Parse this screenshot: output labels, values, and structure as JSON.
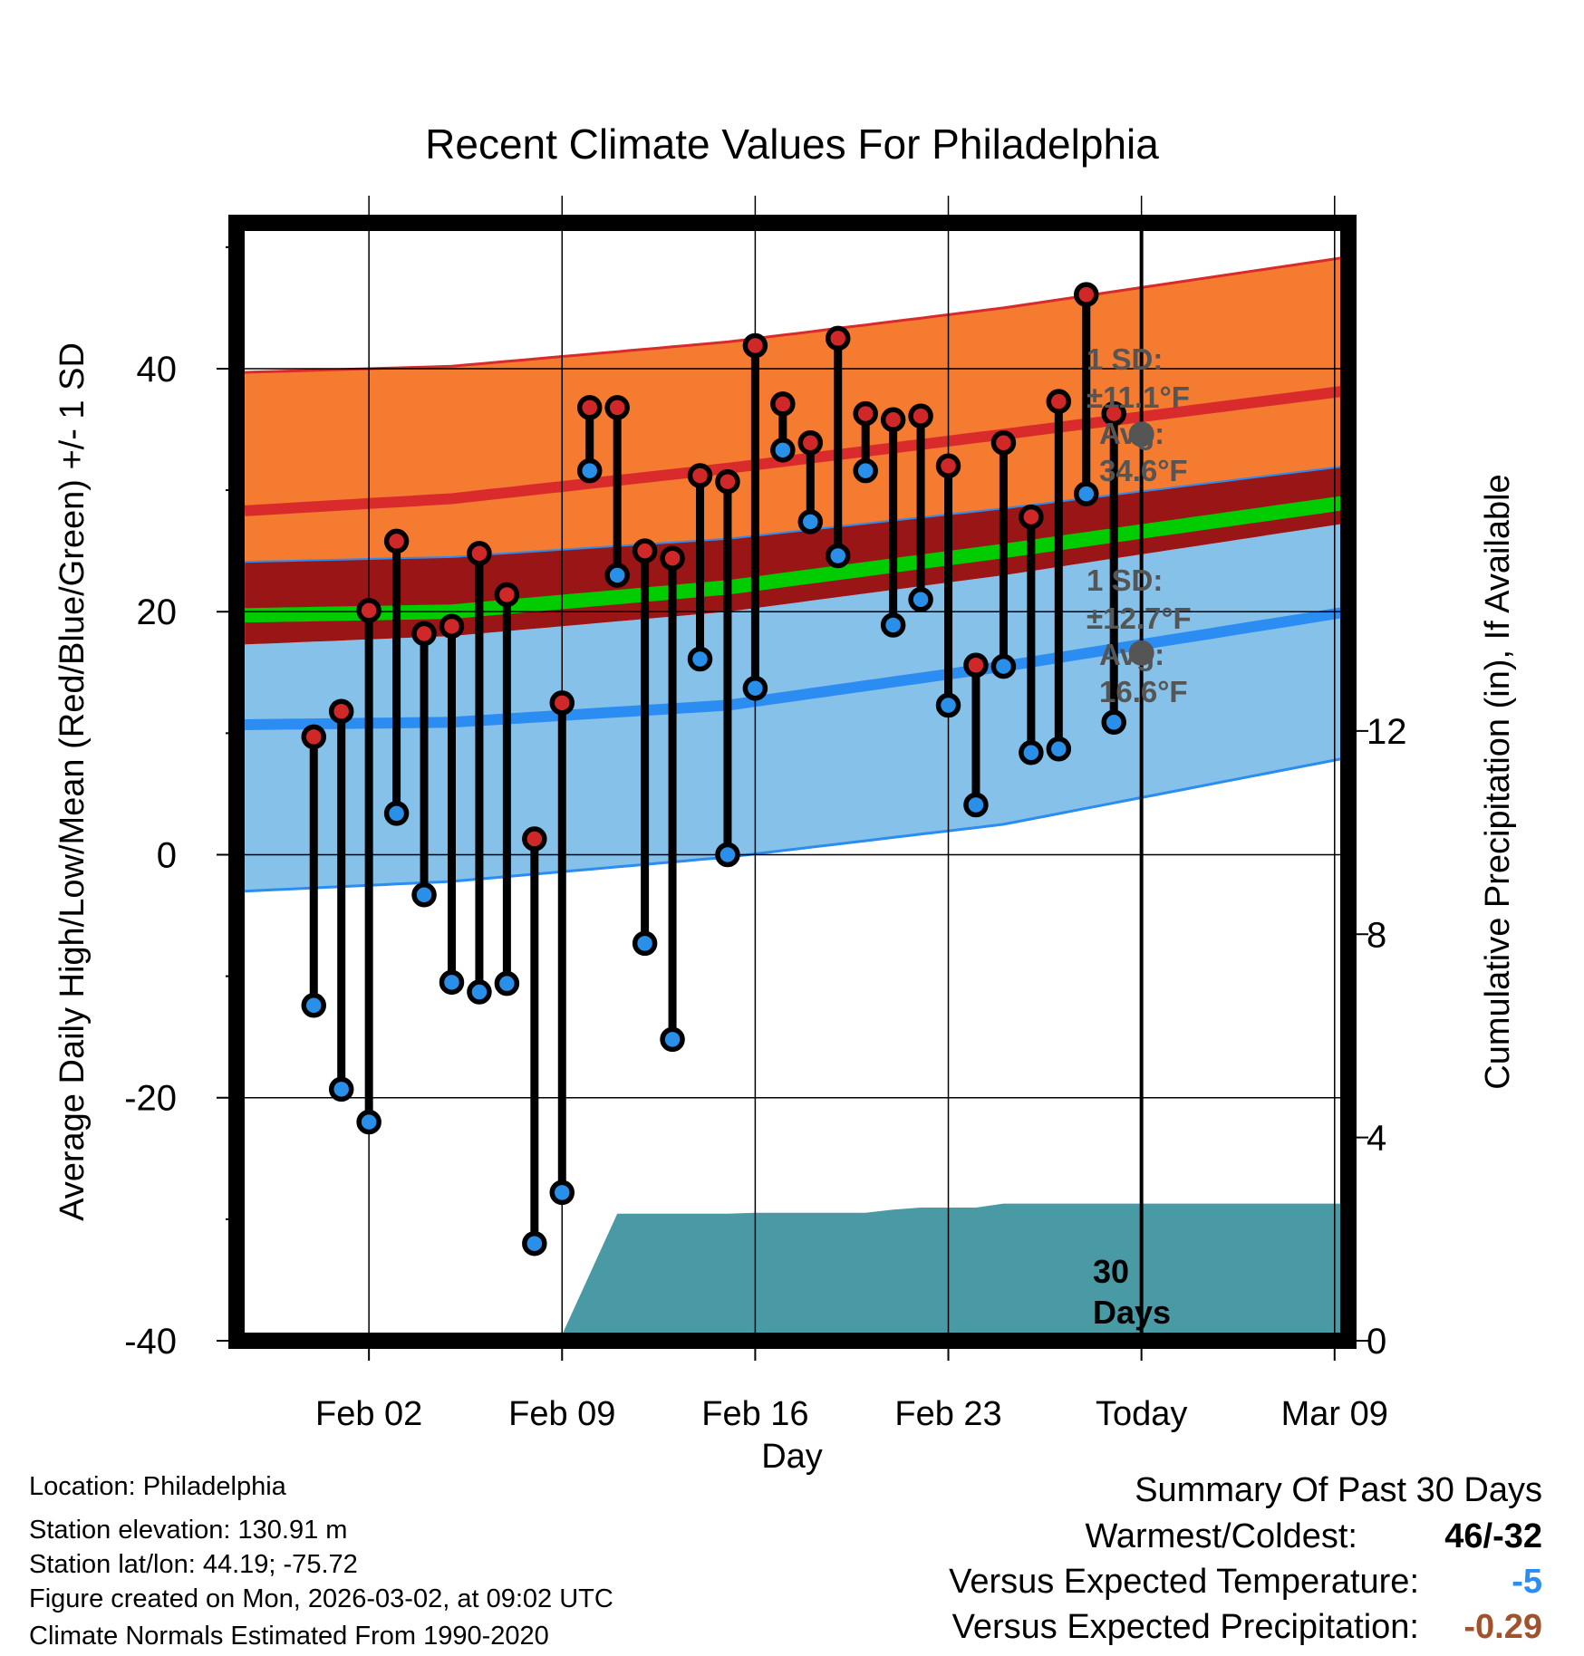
{
  "chart_data": {
    "type": "line",
    "title": "Recent Climate Values For Philadelphia",
    "xlabel": "Day",
    "ylabel": "Average Daily High/Low/Mean (Red/Blue/Green) +/- 1 SD",
    "ylabel_right": "Cumulative Precipitation (in), If Available",
    "ylim": [
      -40,
      52
    ],
    "y_ticks": [
      "40",
      "20",
      "0",
      "-20",
      "-40"
    ],
    "y_tick_values": [
      40,
      20,
      0,
      -20,
      -40
    ],
    "y2lim": [
      0,
      22
    ],
    "y2_ticks": [
      "12",
      "8",
      "4",
      "0"
    ],
    "y2_tick_values": [
      12,
      8,
      4,
      0
    ],
    "x_range": [
      -2.8,
      37.5
    ],
    "x_ticks": [
      {
        "day": 2,
        "label": "Feb 02"
      },
      {
        "day": 9,
        "label": "Feb 09"
      },
      {
        "day": 16,
        "label": "Feb 16"
      },
      {
        "day": 23,
        "label": "Feb 23"
      },
      {
        "day": 30,
        "label": "Today"
      },
      {
        "day": 37,
        "label": "Mar 09"
      }
    ],
    "today_day": 30,
    "today_label": "30 Days",
    "normals": {
      "days": [
        -2.5,
        5,
        15,
        25,
        37.5
      ],
      "high_plus_sd": [
        39.7,
        40.2,
        42.2,
        45.0,
        49.2
      ],
      "high_mean": [
        28.3,
        29.3,
        31.8,
        34.6,
        38.2
      ],
      "high_minus_sd": [
        24.1,
        24.5,
        26.0,
        28.5,
        32.0
      ],
      "mean": [
        19.7,
        20.0,
        22.0,
        25.0,
        29.0
      ],
      "low_plus_sd": [
        17.3,
        18.0,
        20.0,
        23.0,
        27.3
      ],
      "low_mean": [
        10.7,
        10.9,
        12.3,
        15.5,
        20.0
      ],
      "low_minus_sd": [
        -3.0,
        -2.2,
        -0.2,
        2.5,
        8.0
      ]
    },
    "series": [
      {
        "name": "High",
        "days": [
          0,
          1,
          2,
          3,
          4,
          5,
          6,
          7,
          8,
          9,
          10,
          11,
          12,
          13,
          14,
          15,
          16,
          17,
          18,
          19,
          20,
          21,
          22,
          23,
          24,
          25,
          26,
          27,
          28,
          29
        ],
        "values": [
          9.7,
          11.8,
          20.1,
          25.8,
          18.2,
          18.8,
          24.8,
          21.4,
          1.3,
          12.5,
          36.8,
          36.8,
          25.0,
          24.4,
          31.2,
          30.7,
          41.9,
          37.1,
          33.9,
          42.5,
          36.3,
          35.8,
          36.1,
          32.0,
          15.6,
          33.9,
          27.8,
          37.3,
          46.1,
          36.3
        ]
      },
      {
        "name": "Low",
        "days": [
          0,
          1,
          2,
          3,
          4,
          5,
          6,
          7,
          8,
          9,
          10,
          11,
          12,
          13,
          14,
          15,
          16,
          17,
          18,
          19,
          20,
          21,
          22,
          23,
          24,
          25,
          26,
          27,
          28,
          29
        ],
        "values": [
          -12.4,
          -19.3,
          -22.0,
          3.4,
          -3.3,
          -10.5,
          -11.3,
          -10.6,
          -32.0,
          -27.8,
          31.6,
          23.0,
          -7.3,
          -15.2,
          16.1,
          0.0,
          13.7,
          33.3,
          27.4,
          24.6,
          31.6,
          18.9,
          21.0,
          12.3,
          4.1,
          15.5,
          8.4,
          8.7,
          29.7,
          10.9
        ]
      }
    ],
    "precip_cumulative": {
      "days": [
        -2.5,
        3.5,
        4.5,
        5.5,
        6.5,
        7.5,
        8.5,
        9,
        11,
        13,
        15,
        16,
        20,
        21,
        22,
        23,
        24,
        25,
        37.5
      ],
      "values": [
        0,
        0,
        0,
        0.03,
        0.05,
        0.1,
        0.12,
        0.12,
        2.5,
        2.5,
        2.5,
        2.52,
        2.52,
        2.58,
        2.62,
        2.62,
        2.62,
        2.7,
        2.7
      ]
    },
    "annotations": {
      "high": {
        "sd": "1 SD:",
        "sd_value": "±11.1°F",
        "avg": "Avg:",
        "avg_value": "34.6°F",
        "value": 34.6
      },
      "low": {
        "sd": "1 SD:",
        "sd_value": "±12.7°F",
        "avg": "Avg:",
        "avg_value": "16.6°F",
        "value": 16.6
      }
    }
  },
  "metadata": {
    "location": "Location: Philadelphia",
    "elevation": "Station elevation: 130.91 m",
    "latlon": "Station lat/lon: 44.19; -75.72",
    "created": "Figure created on Mon, 2026-03-02, at 09:02 UTC",
    "normals": "Climate Normals Estimated From 1990-2020"
  },
  "summary": {
    "title": "Summary Of Past 30 Days",
    "warm_cold_label": "Warmest/Coldest:",
    "warm_cold_value": "46/-32",
    "temp_label": "Versus Expected Temperature:",
    "temp_value": "-5",
    "precip_label": "Versus Expected Precipitation:",
    "precip_value": "-0.29"
  },
  "colors": {
    "orange": "#F47B30",
    "red_line": "#D92B2B",
    "dark_red": "#9A1515",
    "green": "#00CC00",
    "light_blue": "#85C1E9",
    "blue_line": "#2B8CF2",
    "teal": "#4A9AA5",
    "high_dot": "#D02828",
    "low_dot": "#2A8FE8",
    "annotation_gray": "#555555",
    "temp_value": "#2B8CF2",
    "precip_value": "#A0522D"
  }
}
